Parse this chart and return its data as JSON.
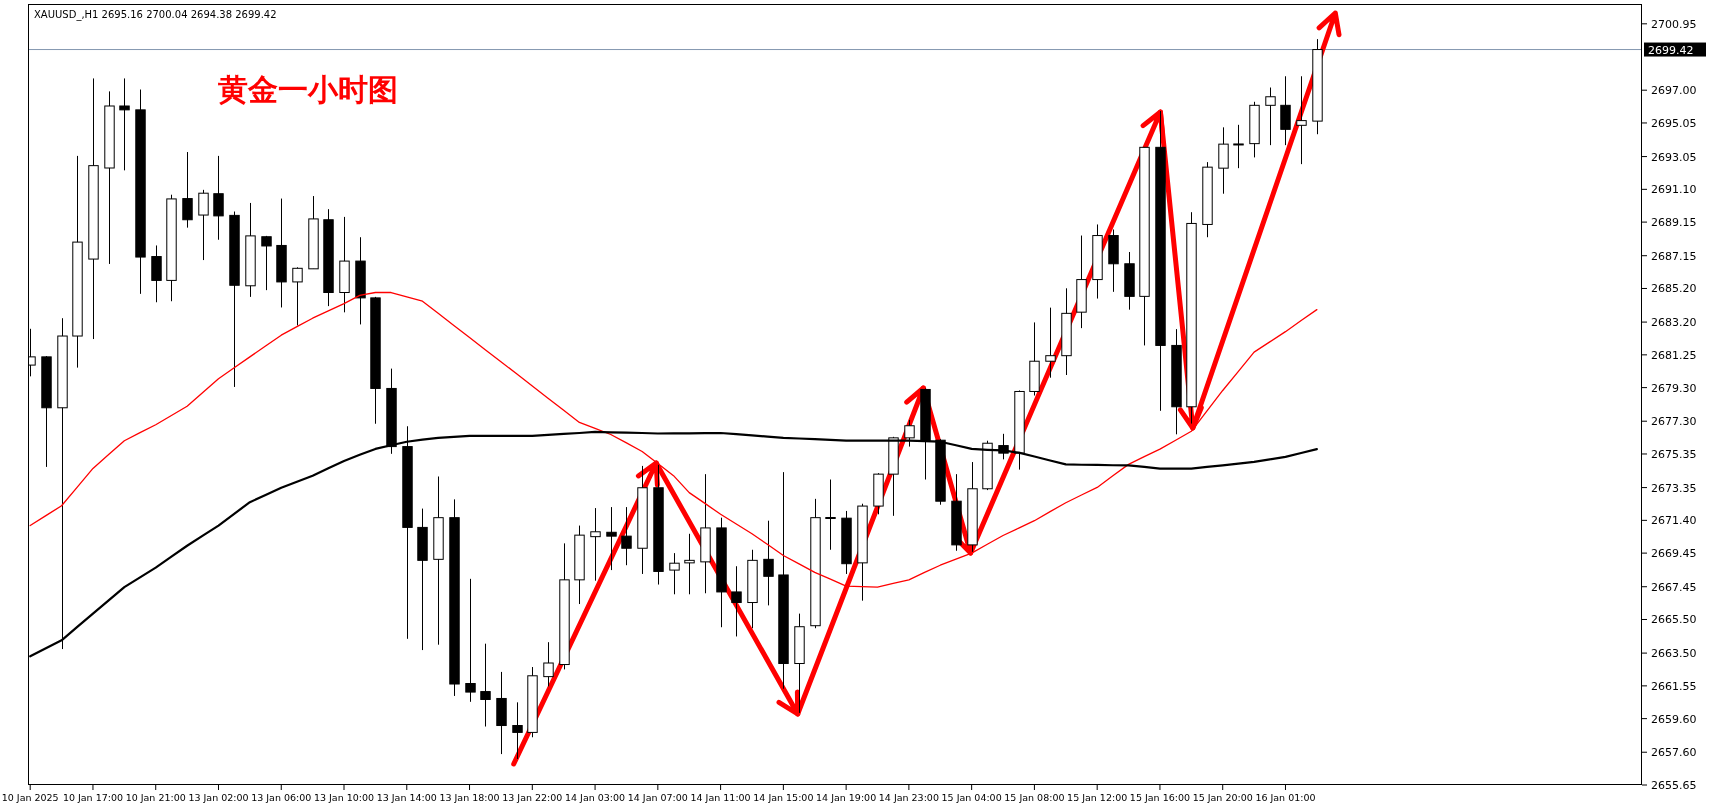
{
  "chart_data": {
    "type": "candlestick",
    "title": "黄金一小时图",
    "annotations": [
      "XAUUSD_,H1  2695.16 2700.04 2694.38 2699.42"
    ],
    "categories": [
      "10 Jan 2025",
      null,
      null,
      null,
      "10 Jan 17:00",
      null,
      null,
      null,
      "10 Jan 21:00",
      null,
      null,
      null,
      "13 Jan 02:00",
      null,
      null,
      null,
      "13 Jan 06:00",
      null,
      null,
      null,
      "13 Jan 10:00",
      null,
      null,
      null,
      "13 Jan 14:00",
      null,
      null,
      null,
      "13 Jan 18:00",
      null,
      null,
      null,
      "13 Jan 22:00",
      null,
      null,
      null,
      "14 Jan 03:00",
      null,
      null,
      null,
      "14 Jan 07:00",
      null,
      null,
      null,
      "14 Jan 11:00",
      null,
      null,
      null,
      "14 Jan 15:00",
      null,
      null,
      null,
      "14 Jan 19:00",
      null,
      null,
      null,
      "14 Jan 23:00",
      null,
      null,
      null,
      "15 Jan 04:00",
      null,
      null,
      null,
      "15 Jan 08:00",
      null,
      null,
      null,
      "15 Jan 12:00",
      null,
      null,
      null,
      "15 Jan 16:00",
      null,
      null,
      null,
      "15 Jan 20:00",
      null,
      null,
      null,
      "16 Jan 01:00",
      null,
      null
    ],
    "ohlc": [
      [
        2680.64,
        2682.8,
        2679.97,
        2681.13
      ],
      [
        2681.13,
        2681.18,
        2674.58,
        2678.1
      ],
      [
        2678.1,
        2683.43,
        2663.74,
        2682.37
      ],
      [
        2682.37,
        2693.09,
        2680.49,
        2687.96
      ],
      [
        2686.95,
        2697.7,
        2682.19,
        2692.51
      ],
      [
        2692.37,
        2696.93,
        2686.66,
        2696.06
      ],
      [
        2696.06,
        2697.7,
        2692.23,
        2695.83
      ],
      [
        2695.83,
        2697.04,
        2684.88,
        2687.07
      ],
      [
        2687.1,
        2687.76,
        2684.38,
        2685.68
      ],
      [
        2685.68,
        2690.78,
        2684.44,
        2690.53
      ],
      [
        2690.55,
        2693.32,
        2688.82,
        2689.29
      ],
      [
        2689.57,
        2691.07,
        2686.89,
        2690.87
      ],
      [
        2690.84,
        2693.09,
        2688.1,
        2689.52
      ],
      [
        2689.55,
        2689.78,
        2679.34,
        2685.39
      ],
      [
        2685.36,
        2690.29,
        2684.7,
        2688.33
      ],
      [
        2688.28,
        2688.33,
        2685.1,
        2687.73
      ],
      [
        2687.76,
        2690.55,
        2684.07,
        2685.59
      ],
      [
        2685.59,
        2686.46,
        2683.0,
        2686.4
      ],
      [
        2686.37,
        2690.7,
        2686.37,
        2689.34
      ],
      [
        2689.29,
        2689.92,
        2684.15,
        2684.96
      ],
      [
        2684.96,
        2689.46,
        2683.78,
        2686.83
      ],
      [
        2686.83,
        2688.25,
        2683.06,
        2684.64
      ],
      [
        2684.64,
        2684.7,
        2677.15,
        2679.25
      ],
      [
        2679.25,
        2680.43,
        2675.36,
        2675.79
      ],
      [
        2675.79,
        2677.0,
        2664.35,
        2670.98
      ],
      [
        2670.98,
        2672.1,
        2663.68,
        2669.02
      ],
      [
        2669.08,
        2674.01,
        2664.0,
        2671.56
      ],
      [
        2671.56,
        2672.65,
        2660.95,
        2661.66
      ],
      [
        2661.69,
        2667.92,
        2660.6,
        2661.18
      ],
      [
        2661.21,
        2664.06,
        2659.13,
        2660.74
      ],
      [
        2660.8,
        2662.38,
        2657.49,
        2659.19
      ],
      [
        2659.19,
        2660.57,
        2657.2,
        2658.78
      ],
      [
        2658.78,
        2662.67,
        2658.49,
        2662.15
      ],
      [
        2662.1,
        2664.15,
        2661.52,
        2662.91
      ],
      [
        2662.82,
        2670.03,
        2662.53,
        2667.86
      ],
      [
        2667.86,
        2671.09,
        2666.42,
        2670.52
      ],
      [
        2670.43,
        2672.13,
        2667.81,
        2670.72
      ],
      [
        2670.69,
        2672.19,
        2668.44,
        2670.46
      ],
      [
        2670.46,
        2672.19,
        2668.73,
        2669.74
      ],
      [
        2669.74,
        2674.64,
        2668.21,
        2673.34
      ],
      [
        2673.34,
        2674.78,
        2667.58,
        2668.36
      ],
      [
        2668.44,
        2669.45,
        2667.0,
        2668.85
      ],
      [
        2668.87,
        2670.6,
        2667.0,
        2669.02
      ],
      [
        2668.93,
        2674.15,
        2667.06,
        2670.95
      ],
      [
        2670.95,
        2671.56,
        2665.04,
        2667.14
      ],
      [
        2667.14,
        2668.67,
        2664.49,
        2666.51
      ],
      [
        2666.51,
        2669.65,
        2664.98,
        2669.02
      ],
      [
        2669.08,
        2671.38,
        2666.34,
        2668.07
      ],
      [
        2668.15,
        2674.27,
        2661.38,
        2662.88
      ],
      [
        2662.88,
        2665.85,
        2659.94,
        2665.07
      ],
      [
        2665.13,
        2672.68,
        2664.98,
        2671.56
      ],
      [
        2671.55,
        2673.83,
        2669.65,
        2671.57
      ],
      [
        2671.53,
        2671.96,
        2668.21,
        2668.82
      ],
      [
        2668.87,
        2672.39,
        2666.62,
        2672.25
      ],
      [
        2672.25,
        2674.21,
        2671.76,
        2674.15
      ],
      [
        2674.15,
        2676.37,
        2671.67,
        2676.31
      ],
      [
        2676.31,
        2677.38,
        2675.79,
        2677.03
      ],
      [
        2679.19,
        2679.25,
        2673.83,
        2676.14
      ],
      [
        2676.17,
        2676.23,
        2672.33,
        2672.54
      ],
      [
        2672.54,
        2674.15,
        2669.59,
        2669.94
      ],
      [
        2669.94,
        2674.87,
        2669.5,
        2673.28
      ],
      [
        2673.28,
        2676.14,
        2673.2,
        2675.99
      ],
      [
        2675.85,
        2676.55,
        2675.03,
        2675.4
      ],
      [
        2675.4,
        2679.13,
        2674.42,
        2679.07
      ],
      [
        2679.07,
        2683.18,
        2678.83,
        2680.87
      ],
      [
        2680.87,
        2684.06,
        2679.89,
        2681.2
      ],
      [
        2681.2,
        2685.21,
        2680.05,
        2683.72
      ],
      [
        2683.79,
        2688.35,
        2682.84,
        2685.73
      ],
      [
        2685.73,
        2689.01,
        2684.6,
        2688.35
      ],
      [
        2688.35,
        2688.71,
        2685.0,
        2686.67
      ],
      [
        2686.67,
        2687.37,
        2683.94,
        2684.73
      ],
      [
        2684.73,
        2693.62,
        2681.81,
        2693.6
      ],
      [
        2693.6,
        2695.76,
        2677.92,
        2681.81
      ],
      [
        2681.81,
        2682.78,
        2676.52,
        2678.16
      ],
      [
        2678.16,
        2689.74,
        2677.16,
        2689.07
      ],
      [
        2689.01,
        2692.72,
        2688.25,
        2692.42
      ],
      [
        2692.36,
        2694.79,
        2690.84,
        2693.79
      ],
      [
        2693.8,
        2694.94,
        2692.36,
        2693.78
      ],
      [
        2693.82,
        2696.31,
        2693.0,
        2696.1
      ],
      [
        2696.1,
        2697.16,
        2693.73,
        2696.61
      ],
      [
        2696.1,
        2697.83,
        2693.73,
        2694.67
      ],
      [
        2694.91,
        2697.83,
        2692.6,
        2695.19
      ],
      [
        2695.16,
        2700.04,
        2694.38,
        2699.42
      ]
    ],
    "series": [
      {
        "type": "line",
        "color": "#ff0000",
        "values": [
          2671.09,
          2671.68,
          2672.27,
          2673.38,
          2674.49,
          2675.32,
          2676.14,
          2676.62,
          2677.09,
          2677.64,
          2678.19,
          2679.01,
          2679.83,
          2680.48,
          2681.13,
          2681.78,
          2682.42,
          2682.93,
          2683.43,
          2683.87,
          2684.3,
          2684.79,
          2684.96,
          2684.96,
          2684.7,
          2684.44,
          2683.72,
          2683.0,
          2682.28,
          2681.56,
          2680.84,
          2680.12,
          2679.4,
          2678.67,
          2677.95,
          2677.23,
          2676.87,
          2676.51,
          2676.01,
          2675.5,
          2674.78,
          2674.06,
          2673.05,
          2672.41,
          2671.76,
          2671.18,
          2670.6,
          2669.96,
          2669.31,
          2668.81,
          2668.3,
          2667.9,
          2667.49,
          2667.46,
          2667.43,
          2667.65,
          2667.86,
          2668.3,
          2668.73,
          2669.09,
          2669.45,
          2669.98,
          2670.5,
          2670.94,
          2671.38,
          2671.92,
          2672.45,
          2672.91,
          2673.36,
          2674.05,
          2674.73,
          2675.19,
          2675.64,
          2676.17,
          2676.7,
          2677.92,
          2679.13,
          2680.27,
          2681.41,
          2682.02,
          2682.63,
          2683.29,
          2683.94
        ]
      },
      {
        "type": "line",
        "color": "#000000",
        "values": [
          2663.31,
          2663.79,
          2664.26,
          2665.06,
          2665.85,
          2666.64,
          2667.43,
          2668.01,
          2668.59,
          2669.24,
          2669.89,
          2670.49,
          2671.09,
          2671.79,
          2672.48,
          2672.91,
          2673.34,
          2673.7,
          2674.06,
          2674.5,
          2674.93,
          2675.3,
          2675.65,
          2675.87,
          2676.08,
          2676.2,
          2676.31,
          2676.37,
          2676.43,
          2676.43,
          2676.43,
          2676.43,
          2676.43,
          2676.49,
          2676.55,
          2676.6,
          2676.66,
          2676.64,
          2676.62,
          2676.6,
          2676.57,
          2676.58,
          2676.58,
          2676.59,
          2676.6,
          2676.53,
          2676.46,
          2676.38,
          2676.31,
          2676.27,
          2676.23,
          2676.19,
          2676.14,
          2676.14,
          2676.14,
          2676.14,
          2676.14,
          2676.11,
          2676.08,
          2675.87,
          2675.65,
          2675.6,
          2675.56,
          2675.43,
          2675.2,
          2674.96,
          2674.73,
          2674.71,
          2674.7,
          2674.68,
          2674.67,
          2674.58,
          2674.48,
          2674.48,
          2674.48,
          2674.58,
          2674.67,
          2674.78,
          2674.88,
          2675.03,
          2675.18,
          2675.41,
          2675.64
        ]
      }
    ],
    "ref_lines": [
      {
        "axis": "y",
        "value": 2699.42,
        "label": "2699.42",
        "color": "#8497b0"
      }
    ],
    "ylim": [
      2655.65,
      2702.13
    ],
    "yticks": [
      {
        "value": 2655.65,
        "label": "2655.65"
      },
      {
        "value": 2657.6,
        "label": "2657.60"
      },
      {
        "value": 2659.6,
        "label": "2659.60"
      },
      {
        "value": 2661.55,
        "label": "2661.55"
      },
      {
        "value": 2663.5,
        "label": "2663.50"
      },
      {
        "value": 2665.5,
        "label": "2665.50"
      },
      {
        "value": 2667.45,
        "label": "2667.45"
      },
      {
        "value": 2669.45,
        "label": "2669.45"
      },
      {
        "value": 2671.4,
        "label": "2671.40"
      },
      {
        "value": 2673.35,
        "label": "2673.35"
      },
      {
        "value": 2675.35,
        "label": "2675.35"
      },
      {
        "value": 2677.3,
        "label": "2677.30"
      },
      {
        "value": 2679.3,
        "label": "2679.30"
      },
      {
        "value": 2681.25,
        "label": "2681.25"
      },
      {
        "value": 2683.2,
        "label": "2683.20"
      },
      {
        "value": 2685.2,
        "label": "2685.20"
      },
      {
        "value": 2687.15,
        "label": "2687.15"
      },
      {
        "value": 2689.15,
        "label": "2689.15"
      },
      {
        "value": 2691.1,
        "label": "2691.10"
      },
      {
        "value": 2693.05,
        "label": "2693.05"
      },
      {
        "value": 2695.05,
        "label": "2695.05"
      },
      {
        "value": 2697.0,
        "label": "2697.00"
      },
      {
        "value": 2700.95,
        "label": "2700.95"
      }
    ]
  }
}
